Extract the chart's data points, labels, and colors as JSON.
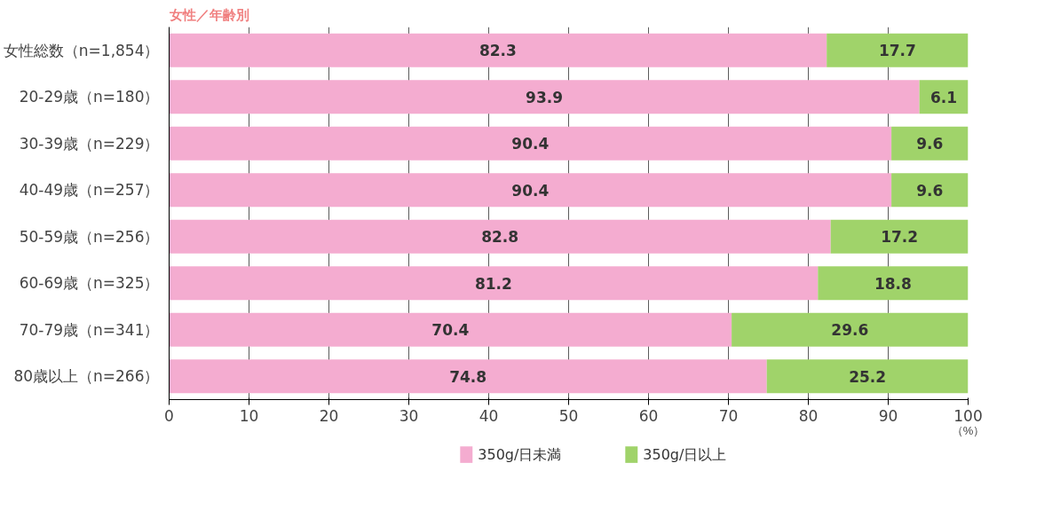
{
  "chart_data": {
    "type": "bar",
    "title": "女性／年齢別",
    "orientation": "horizontal",
    "stacked": true,
    "data_labels": true,
    "categories": [
      "女性総数（n=1,854）",
      "20-29歳（n=180）",
      "30-39歳（n=229）",
      "40-49歳（n=257）",
      "50-59歳（n=256）",
      "60-69歳（n=325）",
      "70-79歳（n=341）",
      "80歳以上（n=266）"
    ],
    "series": [
      {
        "name": "350g/日未満",
        "color": "#f4acd0",
        "values": [
          82.3,
          93.9,
          90.4,
          90.4,
          82.8,
          81.2,
          70.4,
          74.8
        ]
      },
      {
        "name": "350g/日以上",
        "color": "#a0d36a",
        "values": [
          17.7,
          6.1,
          9.6,
          9.6,
          17.2,
          18.8,
          29.6,
          25.2
        ]
      }
    ],
    "xlim": [
      0,
      100
    ],
    "xticks": [
      0,
      10,
      20,
      30,
      40,
      50,
      60,
      70,
      80,
      90,
      100
    ],
    "xlabel": "（%）",
    "grid": "x",
    "legend": "bottom"
  }
}
